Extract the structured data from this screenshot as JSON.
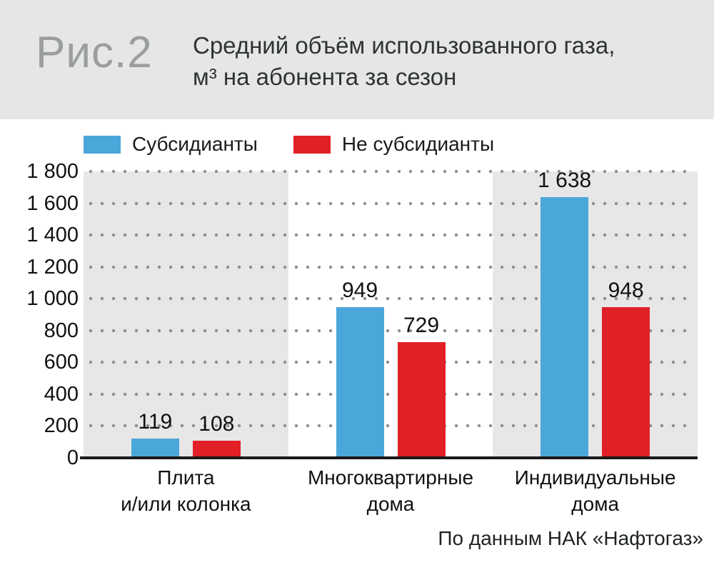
{
  "figure_label": "Рис.2",
  "title": {
    "line1": "Средний объём использованного газа,",
    "line2": "м³ на абонента за сезон"
  },
  "legend": [
    {
      "label": "Субсидианты",
      "color": "#4ba6da"
    },
    {
      "label": "Не субсидианты",
      "color": "#e11f26"
    }
  ],
  "source": "По данным НАК «Нафтогаз»",
  "chart_data": {
    "type": "bar",
    "title": "Средний объём использованного газа, м³ на абонента за сезон",
    "categories": [
      "Плита и/или колонка",
      "Многоквартирные дома",
      "Индивидуальные дома"
    ],
    "category_label_lines": [
      [
        "Плита",
        "и/или колонка"
      ],
      [
        "Многоквартирные",
        "дома"
      ],
      [
        "Индивидуальные",
        "дома"
      ]
    ],
    "series": [
      {
        "name": "Субсидианты",
        "color": "#4ba6da",
        "values": [
          119,
          949,
          1638
        ],
        "value_labels": [
          "119",
          "949",
          "1 638"
        ]
      },
      {
        "name": "Не субсидианты",
        "color": "#e11f26",
        "values": [
          108,
          729,
          948
        ],
        "value_labels": [
          "108",
          "729",
          "948"
        ]
      }
    ],
    "ylim": [
      0,
      1800
    ],
    "ytick_interval": 200,
    "ytick_labels": [
      "0",
      "200",
      "400",
      "600",
      "800",
      "1 000",
      "1 200",
      "1 400",
      "1 600",
      "1 800"
    ],
    "grid": "horizontal-dotted",
    "legend_position": "top-left",
    "band_colors": [
      "#e7e7e7",
      "#ffffff",
      "#e7e7e7"
    ],
    "xlabel": "",
    "ylabel": ""
  }
}
